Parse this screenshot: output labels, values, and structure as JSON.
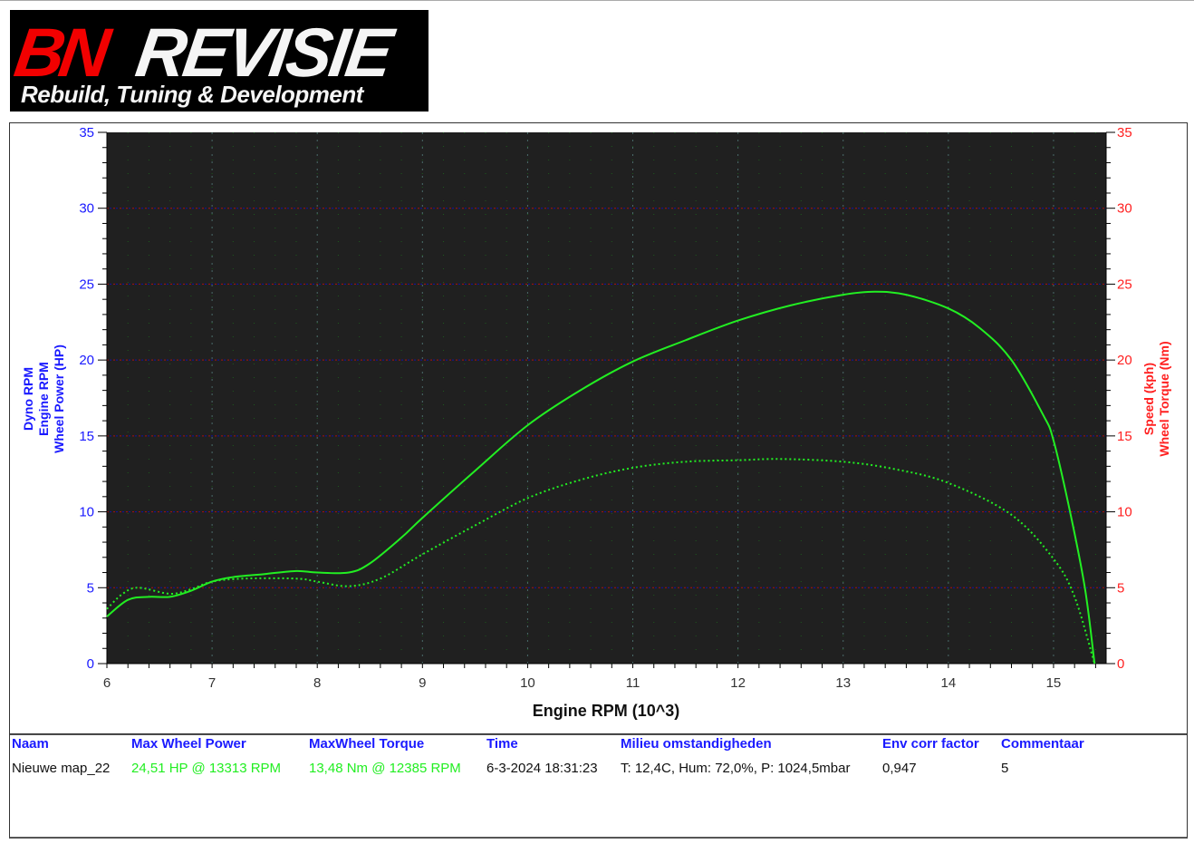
{
  "logo": {
    "brand_red": "BN",
    "brand_white": "REVISIE",
    "tagline": "Rebuild, Tuning & Development"
  },
  "chart_data": {
    "type": "line",
    "xlabel": "Engine RPM (10^3)",
    "ylabel_left": [
      "Dyno RPM",
      "Engine RPM",
      "Wheel Power (HP)"
    ],
    "ylabel_right": [
      "Speed (kph)",
      "Wheel Torque (Nm)"
    ],
    "xlim": [
      6,
      15.5
    ],
    "ylim": [
      0,
      35
    ],
    "xticks": [
      "6",
      "7",
      "8",
      "9",
      "10",
      "11",
      "12",
      "13",
      "14",
      "15"
    ],
    "yticks": [
      "0",
      "5",
      "10",
      "15",
      "20",
      "25",
      "30",
      "35"
    ],
    "grid": true,
    "colors": {
      "plot_bg": "#202020",
      "series": "#22ee22",
      "left_axis": "#1a1aff",
      "right_axis": "#ff2020"
    },
    "series": [
      {
        "style": "solid",
        "x": [
          6.0,
          6.2,
          6.4,
          6.6,
          6.8,
          7.0,
          7.2,
          7.5,
          7.8,
          8.0,
          8.3,
          8.5,
          8.8,
          9.0,
          9.5,
          10.0,
          10.5,
          11.0,
          11.5,
          12.0,
          12.5,
          13.0,
          13.3,
          13.6,
          14.0,
          14.3,
          14.6,
          14.9,
          15.0,
          15.16,
          15.3,
          15.39
        ],
        "y": [
          3.1,
          4.2,
          4.4,
          4.4,
          4.8,
          5.4,
          5.7,
          5.9,
          6.1,
          6.0,
          6.0,
          6.6,
          8.3,
          9.6,
          12.7,
          15.7,
          18.0,
          19.9,
          21.3,
          22.6,
          23.6,
          24.3,
          24.5,
          24.3,
          23.4,
          22.1,
          20.0,
          16.4,
          14.7,
          9.9,
          4.9,
          0
        ]
      },
      {
        "style": "dotted",
        "x": [
          6.0,
          6.15,
          6.3,
          6.6,
          6.8,
          7.0,
          7.3,
          7.8,
          8.0,
          8.3,
          8.6,
          9.0,
          9.5,
          10.0,
          10.5,
          11.0,
          11.5,
          12.0,
          12.4,
          13.0,
          13.5,
          14.0,
          14.6,
          15.0,
          15.2,
          15.39
        ],
        "y": [
          3.6,
          4.6,
          5.0,
          4.6,
          4.9,
          5.4,
          5.6,
          5.6,
          5.4,
          5.1,
          5.6,
          7.2,
          9.1,
          10.9,
          12.1,
          12.9,
          13.3,
          13.4,
          13.48,
          13.3,
          12.8,
          11.9,
          9.8,
          6.9,
          4.4,
          0
        ]
      }
    ]
  },
  "table": {
    "headers": [
      "Naam",
      "Max Wheel Power",
      "MaxWheel Torque",
      "Time",
      "Milieu omstandigheden",
      "Env corr factor",
      "Commentaar"
    ],
    "row": [
      "Nieuwe map_22",
      "24,51 HP @ 13313 RPM",
      "13,48 Nm @ 12385 RPM",
      "6-3-2024 18:31:23",
      "T: 12,4C, Hum: 72,0%, P: 1024,5mbar",
      "0,947",
      "5"
    ]
  }
}
